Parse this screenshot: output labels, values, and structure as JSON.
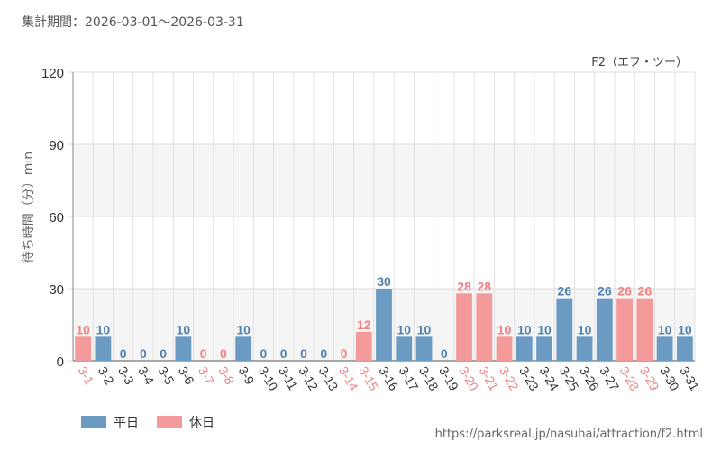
{
  "header": {
    "period": "集計期間：2026-03-01〜2026-03-31"
  },
  "legend": {
    "weekday_label": "平日",
    "holiday_label": "休日"
  },
  "source_url": "https://parksreal.jp/nasuhai/attraction/f2.html",
  "colors": {
    "weekday": "#6b9bc3",
    "holiday": "#f59a9a",
    "weekday_text": "#4f82b0",
    "holiday_text": "#f08080"
  },
  "chart_data": {
    "type": "bar",
    "title": "F2（エフ・ツー）",
    "ylabel": "待ち時間（分）min",
    "xlabel": "",
    "ylim": [
      0,
      120
    ],
    "yticks": [
      0,
      30,
      60,
      90,
      120
    ],
    "grid": true,
    "legend_position": "bottom-left",
    "categories": [
      "3-1",
      "3-2",
      "3-3",
      "3-4",
      "3-5",
      "3-6",
      "3-7",
      "3-8",
      "3-9",
      "3-10",
      "3-11",
      "3-12",
      "3-13",
      "3-14",
      "3-15",
      "3-16",
      "3-17",
      "3-18",
      "3-19",
      "3-20",
      "3-21",
      "3-22",
      "3-23",
      "3-24",
      "3-25",
      "3-26",
      "3-27",
      "3-28",
      "3-29",
      "3-30",
      "3-31"
    ],
    "values": [
      10,
      10,
      0,
      0,
      0,
      10,
      0,
      0,
      10,
      0,
      0,
      0,
      0,
      0,
      12,
      30,
      10,
      10,
      0,
      28,
      28,
      10,
      10,
      10,
      26,
      10,
      26,
      26,
      26,
      10,
      10
    ],
    "day_type": [
      "holiday",
      "weekday",
      "weekday",
      "weekday",
      "weekday",
      "weekday",
      "holiday",
      "holiday",
      "weekday",
      "weekday",
      "weekday",
      "weekday",
      "weekday",
      "holiday",
      "holiday",
      "weekday",
      "weekday",
      "weekday",
      "weekday",
      "holiday",
      "holiday",
      "holiday",
      "weekday",
      "weekday",
      "weekday",
      "weekday",
      "weekday",
      "holiday",
      "holiday",
      "weekday",
      "weekday"
    ]
  }
}
